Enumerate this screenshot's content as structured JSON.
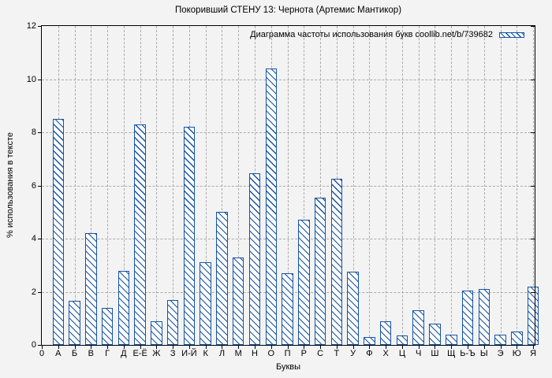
{
  "chart_data": {
    "type": "bar",
    "title": "Покоривший СТЕНУ 13: Чернота (Артемис Мантикор)",
    "legend": "Диаграмма частоты использования букв coollib.net/b/739682",
    "legend_position": "top-right",
    "xlabel": "Буквы",
    "ylabel": "% использования в тексте",
    "origin_tick_label": "0",
    "categories": [
      "А",
      "Б",
      "В",
      "Г",
      "Д",
      "Е-Ё",
      "Ж",
      "З",
      "И-Й",
      "К",
      "Л",
      "М",
      "Н",
      "О",
      "П",
      "Р",
      "С",
      "Т",
      "У",
      "Ф",
      "Х",
      "Ц",
      "Ч",
      "Ш",
      "Щ",
      "Ь-Ъ",
      "Ы",
      "Э",
      "Ю",
      "Я"
    ],
    "values": [
      8.5,
      1.65,
      4.2,
      1.4,
      2.8,
      8.3,
      0.9,
      1.7,
      8.2,
      3.1,
      5.0,
      3.3,
      6.45,
      10.4,
      2.7,
      4.7,
      5.55,
      6.25,
      2.75,
      0.3,
      0.9,
      0.35,
      1.3,
      0.8,
      0.4,
      2.05,
      2.1,
      0.4,
      0.5,
      2.2
    ],
    "yticks": [
      0,
      2,
      4,
      6,
      8,
      10,
      12
    ],
    "ylim": [
      0,
      12
    ],
    "grid": true,
    "colors": {
      "bar_edge": "#1553a4",
      "bar_fill": "#fdfdfd",
      "background": "#f3f3f3",
      "grid": "#ababab",
      "axis": "#000000",
      "text": "#000000"
    }
  }
}
